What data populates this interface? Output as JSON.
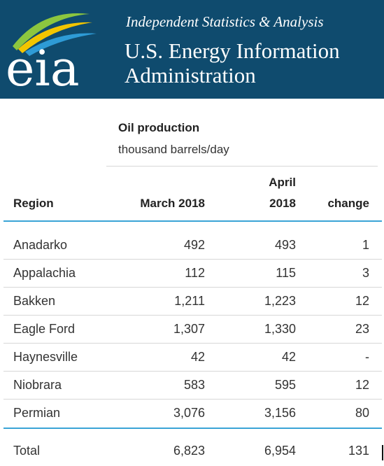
{
  "header": {
    "tagline": "Independent Statistics & Analysis",
    "org_line1": "U.S. Energy Information",
    "org_line2": "Administration",
    "logo_text": "eia",
    "brand_color": "#0f4b6e",
    "accent_color": "#3aa4d6"
  },
  "chart_data": {
    "type": "table",
    "title": "Oil production",
    "subtitle": "thousand barrels/day",
    "columns": {
      "region": "Region",
      "march": "March 2018",
      "april_line1": "April",
      "april_line2": "2018",
      "change": "change"
    },
    "rows": [
      {
        "region": "Anadarko",
        "march": "492",
        "april": "493",
        "change": "1"
      },
      {
        "region": "Appalachia",
        "march": "112",
        "april": "115",
        "change": "3"
      },
      {
        "region": "Bakken",
        "march": "1,211",
        "april": "1,223",
        "change": "12"
      },
      {
        "region": "Eagle Ford",
        "march": "1,307",
        "april": "1,330",
        "change": "23"
      },
      {
        "region": "Haynesville",
        "march": "42",
        "april": "42",
        "change": "-"
      },
      {
        "region": "Niobrara",
        "march": "583",
        "april": "595",
        "change": "12"
      },
      {
        "region": "Permian",
        "march": "3,076",
        "april": "3,156",
        "change": "80"
      }
    ],
    "total": {
      "region": "Total",
      "march": "6,823",
      "april": "6,954",
      "change": "131"
    }
  }
}
